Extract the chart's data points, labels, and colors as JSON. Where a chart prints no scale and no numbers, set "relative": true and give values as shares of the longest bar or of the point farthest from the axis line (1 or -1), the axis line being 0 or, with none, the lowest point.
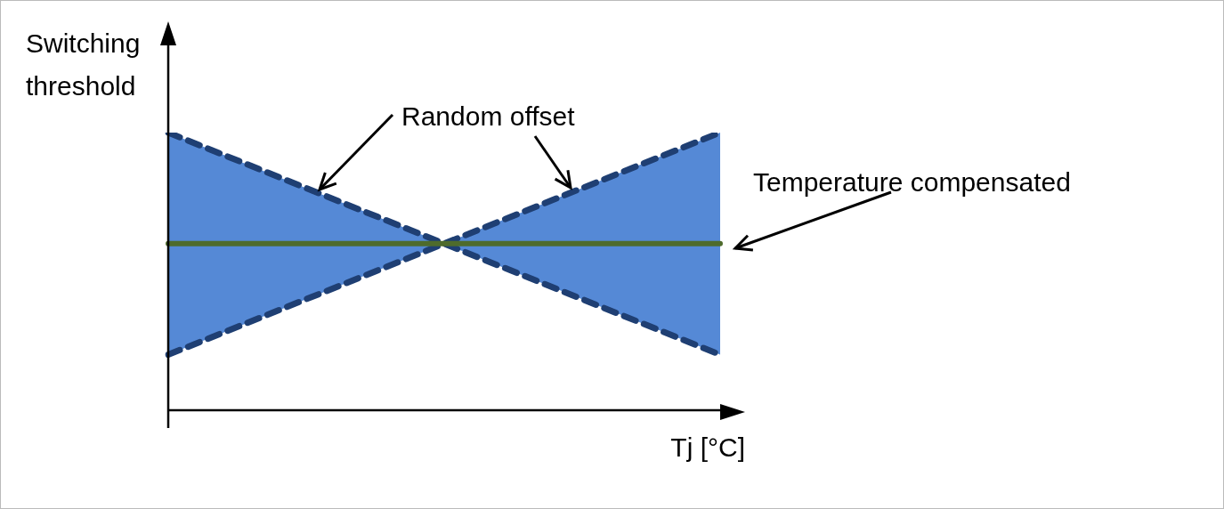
{
  "chart_data": {
    "type": "line",
    "relative": true,
    "tick_labels": false,
    "xlabel": "Tj [°C]",
    "ylabel": "Switching threshold",
    "categories": [
      null,
      null,
      null
    ],
    "series": [
      {
        "type": "line",
        "color": "#1f3f73",
        "line_style": "dashed",
        "values": [
          1,
          0.6,
          0.2
        ]
      },
      {
        "type": "line",
        "color": "#1f3f73",
        "line_style": "dashed",
        "values": [
          0.2,
          0.6,
          1
        ]
      },
      {
        "type": "line",
        "color": "#4e6b2c",
        "line_style": "solid",
        "values": [
          0.6,
          0.6,
          0.6
        ],
        "lower": [
          0.2,
          0.6,
          0.2
        ],
        "upper": [
          1,
          0.6,
          1
        ]
      }
    ],
    "annotations": [
      "Random offset",
      "Temperature compensated"
    ]
  }
}
